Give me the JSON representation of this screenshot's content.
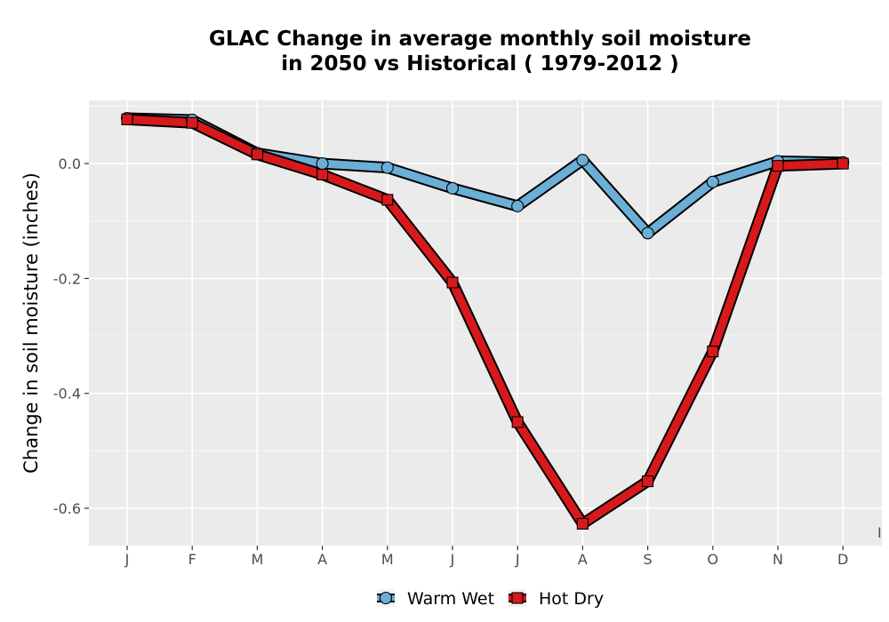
{
  "chart_data": {
    "type": "line",
    "title_lines": [
      "GLAC  Change in average monthly soil moisture",
      "in 2050 vs Historical ( 1979-2012 )"
    ],
    "xlabel": "",
    "ylabel": "Change in soil moisture (inches)",
    "categories": [
      "J",
      "F",
      "M",
      "A",
      "M",
      "J",
      "J",
      "A",
      "S",
      "O",
      "N",
      "D"
    ],
    "ylim": [
      -0.665,
      0.11
    ],
    "y_ticks": [
      0.0,
      -0.2,
      -0.4,
      -0.6
    ],
    "y_tick_labels": [
      "0.0",
      "-0.2",
      "-0.4",
      "-0.6"
    ],
    "grid": true,
    "legend_position": "bottom",
    "corner_mark": "I",
    "series": [
      {
        "name": "Warm Wet",
        "color": "#6baed6",
        "marker": "circle",
        "values": [
          0.079,
          0.076,
          0.018,
          0.0,
          -0.007,
          -0.043,
          -0.074,
          0.006,
          -0.121,
          -0.032,
          0.004,
          0.002
        ]
      },
      {
        "name": "Hot Dry",
        "color": "#d7191c",
        "marker": "square",
        "values": [
          0.077,
          0.071,
          0.016,
          -0.019,
          -0.063,
          -0.207,
          -0.45,
          -0.627,
          -0.553,
          -0.327,
          -0.004,
          0.0
        ]
      }
    ]
  }
}
